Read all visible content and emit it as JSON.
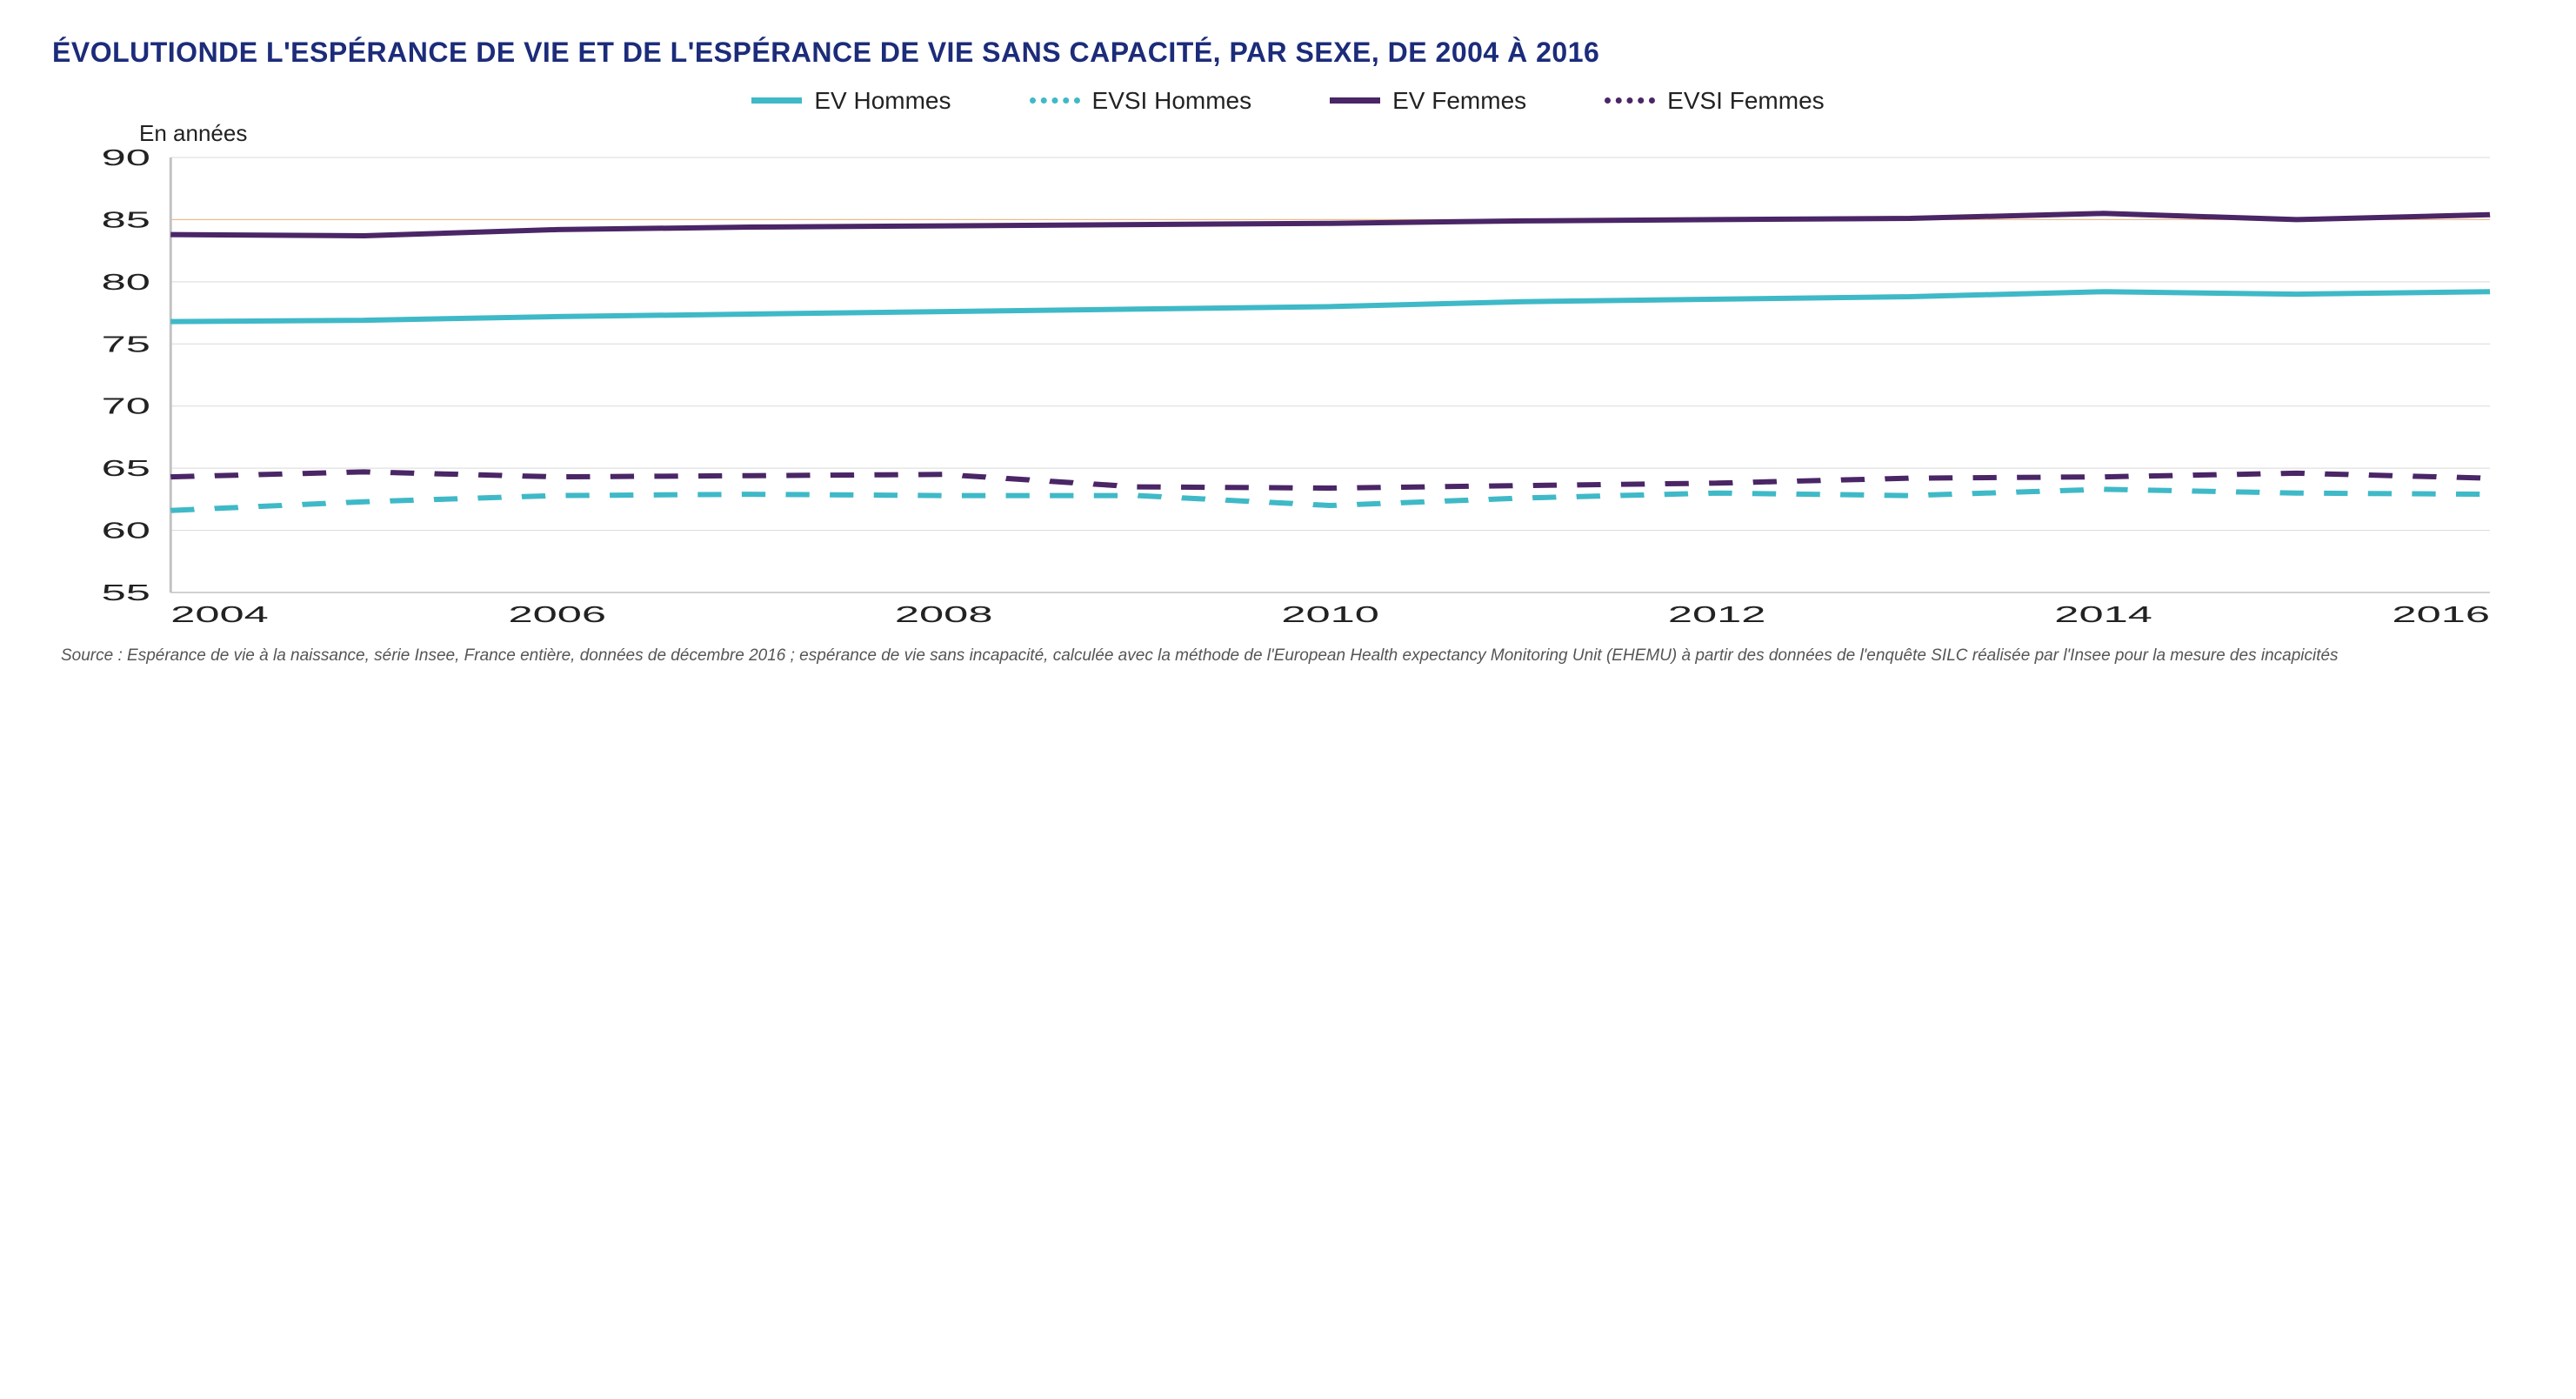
{
  "chart": {
    "type": "line",
    "title": "ÉVOLUTIONDE L'ESPÉRANCE DE VIE ET DE L'ESPÉRANCE DE VIE SANS CAPACITÉ, PAR SEXE, DE 2004 À 2016",
    "title_color": "#1c2c7a",
    "title_fontsize": 32,
    "y_axis_label": "En années",
    "background_color": "#ffffff",
    "grid_color": "#d9d9d9",
    "axis_line_color": "#c2c2c2",
    "tick_font_color": "#222222",
    "tick_fontsize": 26,
    "x": {
      "min": 2004,
      "max": 2016,
      "ticks": [
        2004,
        2006,
        2008,
        2010,
        2012,
        2014,
        2016
      ]
    },
    "y": {
      "min": 55,
      "max": 90,
      "ticks": [
        55,
        60,
        65,
        70,
        75,
        80,
        85,
        90
      ]
    },
    "years": [
      2004,
      2005,
      2006,
      2007,
      2008,
      2009,
      2010,
      2011,
      2012,
      2013,
      2014,
      2015,
      2016
    ],
    "reference_line": {
      "y": 85,
      "color": "#f2b27a",
      "width": 1
    },
    "series": [
      {
        "id": "ev_hommes",
        "label": "EV Hommes",
        "color": "#3fb9c7",
        "style": "solid",
        "line_width": 6,
        "values": [
          76.8,
          76.9,
          77.2,
          77.4,
          77.6,
          77.8,
          78.0,
          78.4,
          78.6,
          78.8,
          79.2,
          79.0,
          79.2
        ]
      },
      {
        "id": "evsi_hommes",
        "label": "EVSI Hommes",
        "color": "#3fb9c7",
        "style": "dashed",
        "line_width": 6,
        "dash": "14 12",
        "values": [
          61.6,
          62.3,
          62.8,
          62.9,
          62.8,
          62.8,
          62.0,
          62.6,
          63.0,
          62.8,
          63.3,
          63.0,
          62.9
        ]
      },
      {
        "id": "ev_femmes",
        "label": "EV Femmes",
        "color": "#4a2666",
        "style": "solid",
        "line_width": 6,
        "values": [
          83.8,
          83.7,
          84.2,
          84.4,
          84.5,
          84.6,
          84.7,
          84.9,
          85.0,
          85.1,
          85.5,
          85.0,
          85.4
        ]
      },
      {
        "id": "evsi_femmes",
        "label": "EVSI Femmes",
        "color": "#4a2666",
        "style": "dashed",
        "line_width": 6,
        "dash": "14 12",
        "values": [
          64.3,
          64.7,
          64.3,
          64.4,
          64.5,
          63.5,
          63.4,
          63.6,
          63.8,
          64.2,
          64.3,
          64.6,
          64.2
        ]
      }
    ],
    "legend_fontsize": 28,
    "source": "Source : Espérance de vie à la naissance, série Insee, France entière, données de décembre 2016 ; espérance de vie sans incapacité, calculée avec la méthode de l'European Health expectancy Monitoring Unit (EHEMU) à partir des données de l'enquête SILC réalisée par l'Insee pour la mesure des incapicités",
    "source_color": "#555555",
    "source_fontsize": 19
  }
}
